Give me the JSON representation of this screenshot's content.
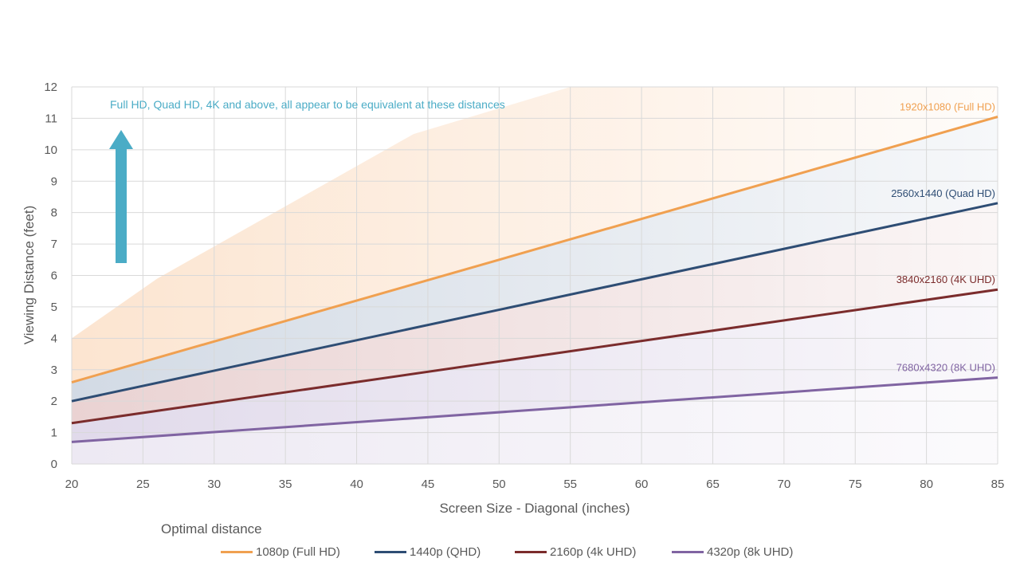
{
  "chart_data": {
    "type": "line",
    "title": "",
    "xlabel": "Screen Size - Diagonal (inches)",
    "ylabel": "Viewing Distance (feet)",
    "xlim": [
      20,
      85
    ],
    "ylim": [
      0,
      12
    ],
    "xticks": [
      20,
      25,
      30,
      35,
      40,
      45,
      50,
      55,
      60,
      65,
      70,
      75,
      80,
      85
    ],
    "yticks": [
      0,
      1,
      2,
      3,
      4,
      5,
      6,
      7,
      8,
      9,
      10,
      11,
      12
    ],
    "grid": true,
    "annotation": "Full HD, Quad HD, 4K and above, all appear to be equivalent at these distances",
    "annotation_color": "#4BACC6",
    "legend_title": "Optimal distance",
    "legend_position": "bottom",
    "series": [
      {
        "name": "1080p (Full HD)",
        "end_label": "1920x1080 (Full HD)",
        "color": "#F0A050",
        "x": [
          20,
          85
        ],
        "y": [
          2.6,
          11.05
        ]
      },
      {
        "name": "1440p (QHD)",
        "end_label": "2560x1440 (Quad HD)",
        "color": "#2E4D74",
        "x": [
          20,
          85
        ],
        "y": [
          2.0,
          8.3
        ]
      },
      {
        "name": "2160p (4k UHD)",
        "end_label": "3840x2160 (4K UHD)",
        "color": "#7B2C2C",
        "x": [
          20,
          85
        ],
        "y": [
          1.3,
          5.55
        ]
      },
      {
        "name": "4320p (8k UHD)",
        "end_label": "7680x4320 (8K UHD)",
        "color": "#8064A2",
        "x": [
          20,
          85
        ],
        "y": [
          0.7,
          2.75
        ]
      }
    ]
  }
}
